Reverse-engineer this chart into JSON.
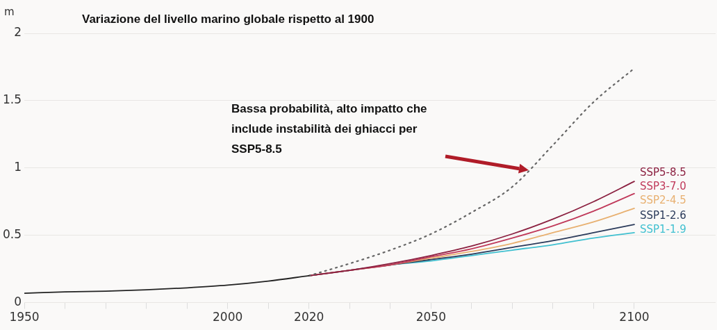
{
  "chart_data": {
    "type": "line",
    "title": "Variazione del livello marino globale rispetto al 1900",
    "ylabel": "m",
    "annotations": [
      "Bassa probabilità, alto impatto che include instabilità dei ghiacci per SSP5-8.5"
    ],
    "series": [
      {
        "color": "#222222",
        "x": [
          1950,
          1960,
          1970,
          1980,
          1990,
          2000,
          2010,
          2020
        ],
        "values": [
          0.07,
          0.08,
          0.085,
          0.095,
          0.11,
          0.13,
          0.16,
          0.2
        ]
      },
      {
        "color": "#666666",
        "line_style": "dotted",
        "x": [
          2020,
          2030,
          2040,
          2050,
          2060,
          2070,
          2080,
          2090,
          2100
        ],
        "values": [
          0.2,
          0.29,
          0.39,
          0.51,
          0.67,
          0.86,
          1.17,
          1.49,
          1.74
        ]
      },
      {
        "name": "SSP5-8.5",
        "color": "#8b2040",
        "x": [
          2020,
          2030,
          2040,
          2050,
          2060,
          2070,
          2080,
          2090,
          2100
        ],
        "values": [
          0.2,
          0.24,
          0.29,
          0.35,
          0.42,
          0.51,
          0.62,
          0.75,
          0.9
        ]
      },
      {
        "name": "SSP3-7.0",
        "color": "#c0395a",
        "x": [
          2020,
          2030,
          2040,
          2050,
          2060,
          2070,
          2080,
          2090,
          2100
        ],
        "values": [
          0.2,
          0.24,
          0.28,
          0.34,
          0.4,
          0.48,
          0.57,
          0.68,
          0.81
        ]
      },
      {
        "name": "SSP2-4.5",
        "color": "#e8b070",
        "x": [
          2020,
          2030,
          2040,
          2050,
          2060,
          2070,
          2080,
          2090,
          2100
        ],
        "values": [
          0.2,
          0.24,
          0.28,
          0.33,
          0.38,
          0.44,
          0.52,
          0.6,
          0.7
        ]
      },
      {
        "name": "SSP1-2.6",
        "color": "#2a3a5a",
        "x": [
          2020,
          2030,
          2040,
          2050,
          2060,
          2070,
          2080,
          2090,
          2100
        ],
        "values": [
          0.2,
          0.24,
          0.28,
          0.32,
          0.36,
          0.41,
          0.46,
          0.52,
          0.58
        ]
      },
      {
        "name": "SSP1-1.9",
        "color": "#40c0d0",
        "x": [
          2020,
          2030,
          2040,
          2050,
          2060,
          2070,
          2080,
          2090,
          2100
        ],
        "values": [
          0.2,
          0.24,
          0.28,
          0.31,
          0.35,
          0.39,
          0.43,
          0.48,
          0.52
        ]
      }
    ],
    "xlim": [
      1950,
      2120
    ],
    "xticks": [
      1950,
      {
        "value": 1960,
        "label": null
      },
      {
        "value": 1970,
        "label": null
      },
      {
        "value": 1980,
        "label": null
      },
      {
        "value": 1990,
        "label": null
      },
      2000,
      {
        "value": 2010,
        "label": null
      },
      2020,
      {
        "value": 2030,
        "label": null
      },
      {
        "value": 2040,
        "label": null
      },
      2050,
      {
        "value": 2060,
        "label": null
      },
      {
        "value": 2070,
        "label": null
      },
      {
        "value": 2080,
        "label": null
      },
      {
        "value": 2090,
        "label": null
      },
      2100
    ],
    "ylim": [
      0,
      2
    ],
    "yticks": [
      0,
      0.5,
      1,
      1.5,
      2
    ],
    "grid": "y",
    "legend": false,
    "marker": "none"
  }
}
